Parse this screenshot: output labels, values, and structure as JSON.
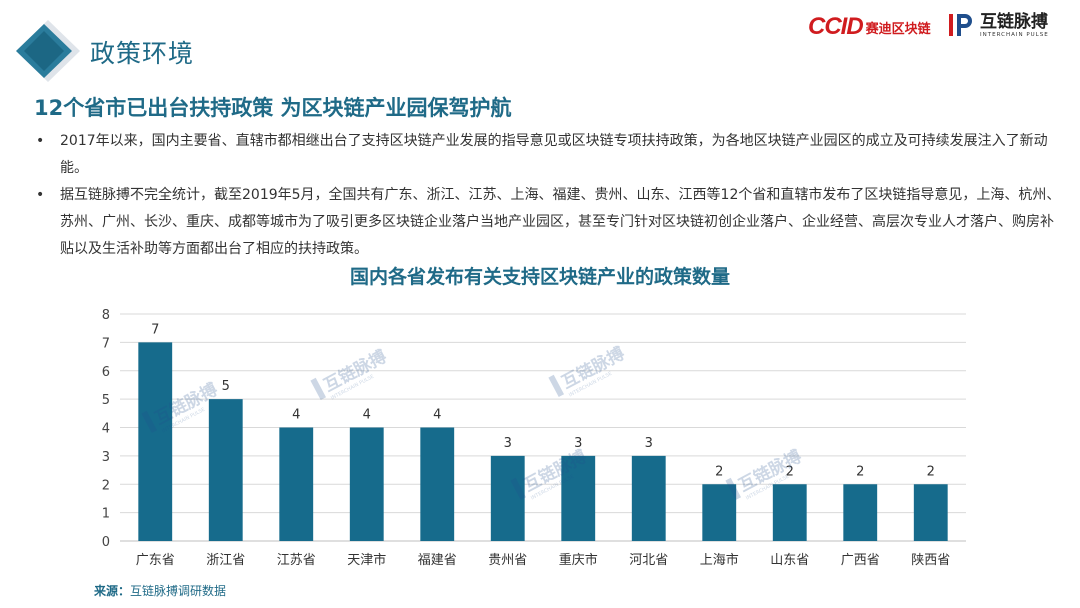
{
  "header": {
    "section_title": "政策环境",
    "logo_ccid_mark": "CCID",
    "logo_ccid_text": "赛迪区块链",
    "logo_ip_name": "互链脉搏",
    "logo_ip_en": "INTERCHAIN PULSE"
  },
  "headline": "12个省市已出台扶持政策 为区块链产业园保驾护航",
  "bullets": [
    "2017年以来，国内主要省、直辖市都相继出台了支持区块链产业发展的指导意见或区块链专项扶持政策，为各地区块链产业园区的成立及可持续发展注入了新动能。",
    "据互链脉搏不完全统计，截至2019年5月，全国共有广东、浙江、江苏、上海、福建、贵州、山东、江西等12个省和直辖市发布了区块链指导意见，上海、杭州、苏州、广州、长沙、重庆、成都等城市为了吸引更多区块链企业落户当地产业园区，甚至专门针对区块链初创企业落户、企业经营、高层次专业人才落户、购房补贴以及生活补助等方面都出台了相应的扶持政策。"
  ],
  "chart_data": {
    "type": "bar",
    "title": "国内各省发布有关支持区块链产业的政策数量",
    "categories": [
      "广东省",
      "浙江省",
      "江苏省",
      "天津市",
      "福建省",
      "贵州省",
      "重庆市",
      "河北省",
      "上海市",
      "山东省",
      "广西省",
      "陕西省"
    ],
    "values": [
      7,
      5,
      4,
      4,
      4,
      3,
      3,
      3,
      2,
      2,
      2,
      2
    ],
    "ylim": [
      0,
      8
    ],
    "yticks": [
      0,
      1,
      2,
      3,
      4,
      5,
      6,
      7,
      8
    ],
    "grid": true,
    "legend": "none",
    "bar_color": "#166b8c",
    "watermark_text": "互链脉搏",
    "watermark_en": "INTERCHAIN PULSE"
  },
  "source": {
    "label": "来源：",
    "text": "互链脉搏调研数据"
  },
  "colors": {
    "accent": "#1f6a87",
    "brand_red": "#d01c1f"
  }
}
